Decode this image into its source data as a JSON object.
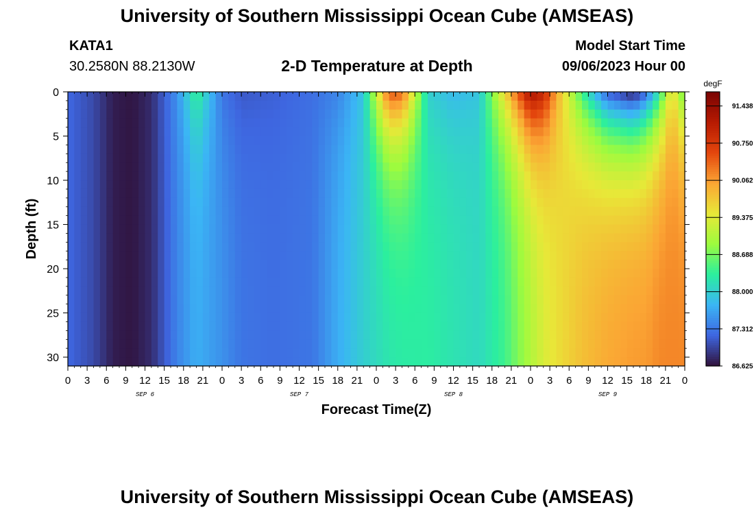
{
  "header": {
    "title": "University of Southern Mississippi Ocean Cube (AMSEAS)",
    "station": "KATA1",
    "coords": "30.2580N  88.2130W",
    "subtitle": "2-D Temperature at Depth",
    "model_start_label": "Model Start Time",
    "model_start_value": "09/06/2023 Hour 00"
  },
  "footer": {
    "title": "University of Southern Mississippi Ocean Cube (AMSEAS)"
  },
  "chart_data": {
    "type": "heatmap",
    "title": "2-D Temperature at Depth",
    "xlabel": "Forecast Time(Z)",
    "ylabel": "Depth (ft)",
    "x_range_hours": [
      0,
      96
    ],
    "x_step_hours": 1,
    "x_tick_labels": [
      "0",
      "3",
      "6",
      "9",
      "12",
      "15",
      "18",
      "21",
      "0",
      "3",
      "6",
      "9",
      "12",
      "15",
      "18",
      "21",
      "0",
      "3",
      "6",
      "9",
      "12",
      "15",
      "18",
      "21",
      "0",
      "3",
      "6",
      "9",
      "12",
      "15",
      "18",
      "21",
      "0"
    ],
    "day_labels": [
      "SEP 6",
      "SEP 7",
      "SEP 8",
      "SEP 9"
    ],
    "ylim": [
      31,
      0
    ],
    "y_ticks": [
      0,
      5,
      10,
      15,
      20,
      25,
      30
    ],
    "y_tick_labels": [
      "0",
      "5",
      "10",
      "15",
      "20",
      "25",
      "30"
    ],
    "colorbar": {
      "unit": "degF",
      "min": 86.625,
      "max": 91.7,
      "tick_values": [
        86.625,
        87.312,
        88.0,
        88.688,
        89.375,
        90.062,
        90.75,
        91.438
      ],
      "tick_labels": [
        "86.625",
        "87.312",
        "88.000",
        "88.688",
        "89.375",
        "90.062",
        "90.750",
        "91.438"
      ],
      "colors": [
        "#30123b",
        "#3e66e0",
        "#3bb5f5",
        "#2bef9e",
        "#9dfb3e",
        "#e8e838",
        "#fba534",
        "#e4460d",
        "#b61a02",
        "#7a0403"
      ]
    },
    "temperature_profile": {
      "description_hours": [
        0,
        4,
        7,
        10,
        13,
        17,
        20,
        24,
        27,
        32,
        38,
        42,
        46,
        48,
        50,
        52,
        56,
        60,
        64,
        68,
        72,
        74,
        76,
        80,
        84,
        88,
        90,
        92,
        94,
        96
      ],
      "surface_degF": [
        87.2,
        87.0,
        86.7,
        86.65,
        86.8,
        87.5,
        88.4,
        87.3,
        87.1,
        87.15,
        87.25,
        87.4,
        87.9,
        89.2,
        90.5,
        90.4,
        88.0,
        87.8,
        87.9,
        89.6,
        91.3,
        91.0,
        90.0,
        88.4,
        87.1,
        86.7,
        87.2,
        88.2,
        89.6,
        88.5
      ],
      "bottom_degF": [
        87.2,
        87.0,
        86.7,
        86.65,
        86.8,
        87.4,
        87.7,
        87.5,
        87.3,
        87.25,
        87.3,
        87.7,
        88.0,
        88.1,
        88.2,
        88.25,
        88.3,
        88.2,
        88.1,
        88.4,
        89.0,
        89.3,
        89.5,
        89.8,
        90.0,
        90.1,
        90.1,
        90.2,
        90.2,
        90.2
      ]
    }
  }
}
